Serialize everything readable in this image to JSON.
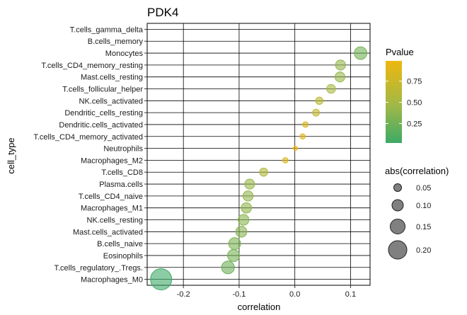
{
  "chart_data": {
    "type": "scatter",
    "title": "PDK4",
    "xlabel": "correlation",
    "ylabel": "cell_type",
    "xlim": [
      -0.265,
      0.135
    ],
    "xticks": [
      -0.2,
      -0.1,
      0.0,
      0.1
    ],
    "xtick_labels": [
      "-0.2",
      "-0.1",
      "0.0",
      "0.1"
    ],
    "grid": true,
    "points": [
      {
        "cell_type": "T.cells_gamma_delta",
        "correlation": null,
        "pvalue": null
      },
      {
        "cell_type": "B.cells_memory",
        "correlation": null,
        "pvalue": null
      },
      {
        "cell_type": "Monocytes",
        "correlation": 0.118,
        "pvalue": 0.26
      },
      {
        "cell_type": "T.cells_CD4_memory_resting",
        "correlation": 0.082,
        "pvalue": 0.4
      },
      {
        "cell_type": "Mast.cells_resting",
        "correlation": 0.081,
        "pvalue": 0.42
      },
      {
        "cell_type": "T.cells_follicular_helper",
        "correlation": 0.065,
        "pvalue": 0.52
      },
      {
        "cell_type": "NK.cells_activated",
        "correlation": 0.044,
        "pvalue": 0.66
      },
      {
        "cell_type": "Dendritic_cells_resting",
        "correlation": 0.038,
        "pvalue": 0.7
      },
      {
        "cell_type": "Dendritic.cells_activated",
        "correlation": 0.019,
        "pvalue": 0.85
      },
      {
        "cell_type": "T.cells_CD4_memory_activated",
        "correlation": 0.014,
        "pvalue": 0.89
      },
      {
        "cell_type": "Neutrophils",
        "correlation": 0.001,
        "pvalue": 0.99
      },
      {
        "cell_type": "Macrophages_M2",
        "correlation": -0.017,
        "pvalue": 0.87
      },
      {
        "cell_type": "T.cells_CD8",
        "correlation": -0.056,
        "pvalue": 0.58
      },
      {
        "cell_type": "Plasma.cells",
        "correlation": -0.081,
        "pvalue": 0.42
      },
      {
        "cell_type": "T.cells_CD4_naive",
        "correlation": -0.084,
        "pvalue": 0.4
      },
      {
        "cell_type": "Macrophages_M1",
        "correlation": -0.087,
        "pvalue": 0.39
      },
      {
        "cell_type": "NK.cells_resting",
        "correlation": -0.092,
        "pvalue": 0.36
      },
      {
        "cell_type": "Mast.cells_activated",
        "correlation": -0.096,
        "pvalue": 0.34
      },
      {
        "cell_type": "B.cells_naive",
        "correlation": -0.108,
        "pvalue": 0.3
      },
      {
        "cell_type": "Eosinophils",
        "correlation": -0.11,
        "pvalue": 0.28
      },
      {
        "cell_type": "T.cells_regulatory_.Tregs.",
        "correlation": -0.12,
        "pvalue": 0.23
      },
      {
        "cell_type": "Macrophages_M0",
        "correlation": -0.24,
        "pvalue": 0.02
      }
    ],
    "colorbar": {
      "title": "Pvalue",
      "range": [
        0.02,
        0.99
      ],
      "ticks": [
        0.25,
        0.5,
        0.75
      ],
      "tick_labels": [
        "0.25",
        "0.50",
        "0.75"
      ],
      "color_low": "#3daa67",
      "color_high": "#eeb70f"
    },
    "size_legend": {
      "title": "abs(correlation)",
      "values": [
        0.05,
        0.1,
        0.15,
        0.2
      ],
      "labels": [
        "0.05",
        "0.10",
        "0.15",
        "0.20"
      ]
    }
  }
}
